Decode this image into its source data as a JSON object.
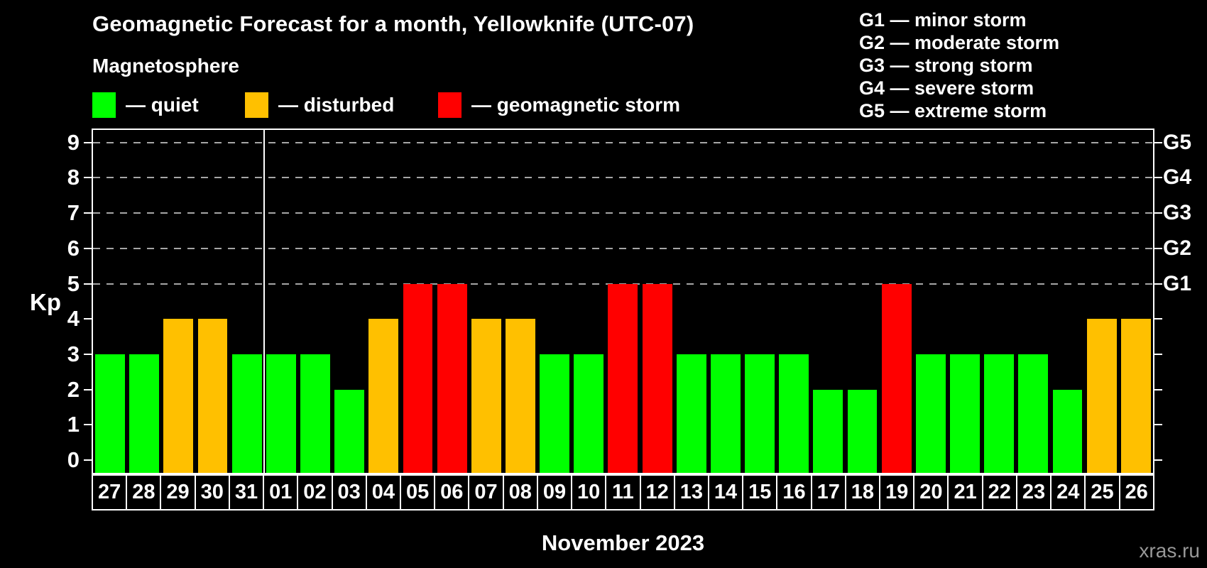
{
  "title": "Geomagnetic Forecast for a month, Yellowknife (UTC-07)",
  "subtitle": "Magnetosphere",
  "status_legend": [
    {
      "key": "quiet",
      "label": "— quiet",
      "color": "#00ff00"
    },
    {
      "key": "disturbed",
      "label": "— disturbed",
      "color": "#ffc000"
    },
    {
      "key": "storm",
      "label": "— geomagnetic storm",
      "color": "#ff0000"
    }
  ],
  "g_scale_legend": [
    "G1 — minor storm",
    "G2 — moderate storm",
    "G3 — strong storm",
    "G4 — severe storm",
    "G5 — extreme storm"
  ],
  "watermark": "xras.ru",
  "colors": {
    "quiet": "#00ff00",
    "disturbed": "#ffc000",
    "storm": "#ff0000",
    "grid": "#a6a6a6",
    "axis": "#ffffff",
    "background": "#000000"
  },
  "chart_data": {
    "type": "bar",
    "title": "Geomagnetic Forecast for a month, Yellowknife (UTC-07)",
    "xlabel": "November 2023",
    "ylabel": "Kp",
    "ylim": [
      0,
      9
    ],
    "grid": "dashed horizontal lines at Kp 5..9 only",
    "legend_position": "top",
    "y_ticks": [
      0,
      1,
      2,
      3,
      4,
      5,
      6,
      7,
      8,
      9
    ],
    "right_axis_labels": [
      {
        "kp": 5,
        "label": "G1"
      },
      {
        "kp": 6,
        "label": "G2"
      },
      {
        "kp": 7,
        "label": "G3"
      },
      {
        "kp": 8,
        "label": "G4"
      },
      {
        "kp": 9,
        "label": "G5"
      }
    ],
    "month_separator_after_index": 4,
    "categories": [
      "27",
      "28",
      "29",
      "30",
      "31",
      "01",
      "02",
      "03",
      "04",
      "05",
      "06",
      "07",
      "08",
      "09",
      "10",
      "11",
      "12",
      "13",
      "14",
      "15",
      "16",
      "17",
      "18",
      "19",
      "20",
      "21",
      "22",
      "23",
      "24",
      "25",
      "26"
    ],
    "values": [
      3,
      3,
      4,
      4,
      3,
      3,
      3,
      2,
      4,
      5,
      5,
      4,
      4,
      3,
      3,
      5,
      5,
      3,
      3,
      3,
      3,
      2,
      2,
      5,
      3,
      3,
      3,
      3,
      2,
      4,
      4
    ],
    "status": [
      "quiet",
      "quiet",
      "disturbed",
      "disturbed",
      "quiet",
      "quiet",
      "quiet",
      "quiet",
      "disturbed",
      "storm",
      "storm",
      "disturbed",
      "disturbed",
      "quiet",
      "quiet",
      "storm",
      "storm",
      "quiet",
      "quiet",
      "quiet",
      "quiet",
      "quiet",
      "quiet",
      "storm",
      "quiet",
      "quiet",
      "quiet",
      "quiet",
      "quiet",
      "disturbed",
      "disturbed"
    ]
  }
}
